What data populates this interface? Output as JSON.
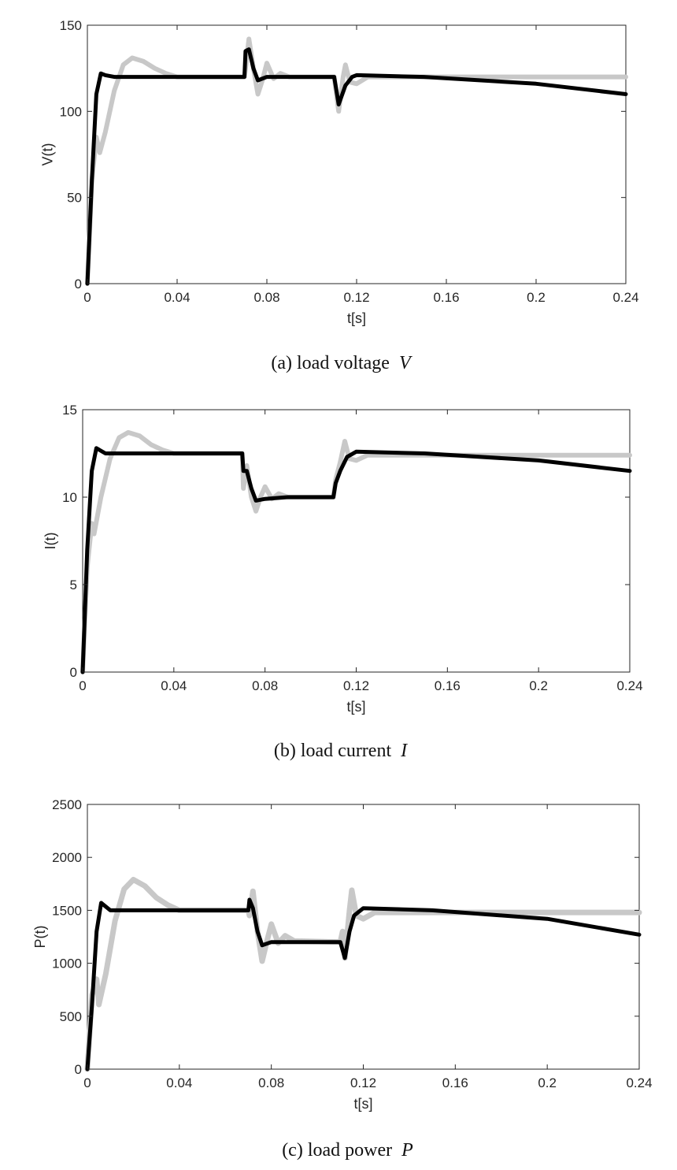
{
  "chart_data": [
    {
      "type": "line",
      "caption": "(a)  load voltage",
      "caption_var": "V",
      "xlabel": "t[s]",
      "ylabel": "V(t)",
      "xlim": [
        0,
        0.24
      ],
      "ylim": [
        0,
        150
      ],
      "xticks": [
        "0",
        "0.04",
        "0.08",
        "0.12",
        "0.16",
        "0.2",
        "0.24"
      ],
      "yticks": [
        "0",
        "50",
        "100",
        "150"
      ],
      "grid": false,
      "series": [
        {
          "color": "#000000",
          "points": [
            [
              0,
              0
            ],
            [
              0.002,
              60
            ],
            [
              0.004,
              110
            ],
            [
              0.006,
              122
            ],
            [
              0.008,
              121
            ],
            [
              0.012,
              120
            ],
            [
              0.07,
              120
            ],
            [
              0.0705,
              135
            ],
            [
              0.072,
              136
            ],
            [
              0.074,
              125
            ],
            [
              0.076,
              118
            ],
            [
              0.08,
              120
            ],
            [
              0.11,
              120
            ],
            [
              0.111,
              112
            ],
            [
              0.112,
              104
            ],
            [
              0.115,
              115
            ],
            [
              0.118,
              120
            ],
            [
              0.12,
              121
            ],
            [
              0.15,
              120
            ],
            [
              0.2,
              116
            ],
            [
              0.24,
              110
            ]
          ]
        },
        {
          "color": "#c8c8c8",
          "points": [
            [
              0,
              0
            ],
            [
              0.002,
              60
            ],
            [
              0.004,
              85
            ],
            [
              0.0055,
              76
            ],
            [
              0.008,
              88
            ],
            [
              0.012,
              112
            ],
            [
              0.016,
              127
            ],
            [
              0.02,
              131
            ],
            [
              0.025,
              129
            ],
            [
              0.03,
              125
            ],
            [
              0.035,
              122
            ],
            [
              0.04,
              120
            ],
            [
              0.07,
              120
            ],
            [
              0.0705,
              125
            ],
            [
              0.072,
              142
            ],
            [
              0.074,
              125
            ],
            [
              0.076,
              110
            ],
            [
              0.078,
              118
            ],
            [
              0.08,
              128
            ],
            [
              0.083,
              119
            ],
            [
              0.086,
              122
            ],
            [
              0.09,
              120
            ],
            [
              0.11,
              120
            ],
            [
              0.111,
              110
            ],
            [
              0.112,
              100
            ],
            [
              0.114,
              120
            ],
            [
              0.115,
              127
            ],
            [
              0.117,
              117
            ],
            [
              0.12,
              116
            ],
            [
              0.125,
              120
            ],
            [
              0.24,
              120
            ]
          ]
        }
      ]
    },
    {
      "type": "line",
      "caption": "(b)  load current",
      "caption_var": "I",
      "xlabel": "t[s]",
      "ylabel": "I(t)",
      "xlim": [
        0,
        0.24
      ],
      "ylim": [
        0,
        15
      ],
      "xticks": [
        "0",
        "0.04",
        "0.08",
        "0.12",
        "0.16",
        "0.2",
        "0.24"
      ],
      "yticks": [
        "0",
        "5",
        "10",
        "15"
      ],
      "grid": false,
      "series": [
        {
          "color": "#000000",
          "points": [
            [
              0,
              0
            ],
            [
              0.002,
              7
            ],
            [
              0.004,
              11.5
            ],
            [
              0.006,
              12.8
            ],
            [
              0.01,
              12.5
            ],
            [
              0.07,
              12.5
            ],
            [
              0.0705,
              11.5
            ],
            [
              0.072,
              11.5
            ],
            [
              0.074,
              10.5
            ],
            [
              0.076,
              9.8
            ],
            [
              0.08,
              9.9
            ],
            [
              0.09,
              10
            ],
            [
              0.11,
              10
            ],
            [
              0.111,
              10.8
            ],
            [
              0.113,
              11.5
            ],
            [
              0.116,
              12.3
            ],
            [
              0.12,
              12.6
            ],
            [
              0.15,
              12.5
            ],
            [
              0.2,
              12.1
            ],
            [
              0.24,
              11.5
            ]
          ]
        },
        {
          "color": "#c8c8c8",
          "points": [
            [
              0,
              0
            ],
            [
              0.002,
              6
            ],
            [
              0.004,
              8.5
            ],
            [
              0.005,
              7.9
            ],
            [
              0.008,
              10
            ],
            [
              0.012,
              12.2
            ],
            [
              0.016,
              13.4
            ],
            [
              0.02,
              13.7
            ],
            [
              0.025,
              13.5
            ],
            [
              0.03,
              13
            ],
            [
              0.035,
              12.7
            ],
            [
              0.04,
              12.5
            ],
            [
              0.07,
              12.5
            ],
            [
              0.0705,
              10.5
            ],
            [
              0.072,
              11.8
            ],
            [
              0.074,
              10
            ],
            [
              0.076,
              9.2
            ],
            [
              0.078,
              10
            ],
            [
              0.08,
              10.6
            ],
            [
              0.083,
              9.9
            ],
            [
              0.086,
              10.2
            ],
            [
              0.09,
              10
            ],
            [
              0.11,
              10
            ],
            [
              0.111,
              11
            ],
            [
              0.113,
              12
            ],
            [
              0.115,
              13.2
            ],
            [
              0.117,
              12.2
            ],
            [
              0.12,
              12.1
            ],
            [
              0.125,
              12.4
            ],
            [
              0.24,
              12.4
            ]
          ]
        }
      ]
    },
    {
      "type": "line",
      "caption": "(c)  load power",
      "caption_var": "P",
      "xlabel": "t[s]",
      "ylabel": "P(t)",
      "xlim": [
        0,
        0.24
      ],
      "ylim": [
        0,
        2500
      ],
      "xticks": [
        "0",
        "0.04",
        "0.08",
        "0.12",
        "0.16",
        "0.2",
        "0.24"
      ],
      "yticks": [
        "0",
        "500",
        "1000",
        "1500",
        "2000",
        "2500"
      ],
      "grid": false,
      "series": [
        {
          "color": "#000000",
          "points": [
            [
              0,
              0
            ],
            [
              0.002,
              600
            ],
            [
              0.004,
              1300
            ],
            [
              0.006,
              1570
            ],
            [
              0.01,
              1500
            ],
            [
              0.07,
              1500
            ],
            [
              0.0705,
              1600
            ],
            [
              0.072,
              1520
            ],
            [
              0.074,
              1300
            ],
            [
              0.076,
              1170
            ],
            [
              0.08,
              1200
            ],
            [
              0.09,
              1200
            ],
            [
              0.11,
              1200
            ],
            [
              0.112,
              1050
            ],
            [
              0.114,
              1300
            ],
            [
              0.116,
              1450
            ],
            [
              0.12,
              1520
            ],
            [
              0.15,
              1500
            ],
            [
              0.2,
              1420
            ],
            [
              0.24,
              1270
            ]
          ]
        },
        {
          "color": "#c8c8c8",
          "points": [
            [
              0,
              0
            ],
            [
              0.002,
              700
            ],
            [
              0.004,
              850
            ],
            [
              0.005,
              610
            ],
            [
              0.008,
              900
            ],
            [
              0.012,
              1400
            ],
            [
              0.016,
              1700
            ],
            [
              0.02,
              1790
            ],
            [
              0.025,
              1730
            ],
            [
              0.03,
              1620
            ],
            [
              0.035,
              1550
            ],
            [
              0.04,
              1500
            ],
            [
              0.07,
              1500
            ],
            [
              0.0705,
              1450
            ],
            [
              0.072,
              1680
            ],
            [
              0.074,
              1300
            ],
            [
              0.076,
              1020
            ],
            [
              0.078,
              1200
            ],
            [
              0.08,
              1370
            ],
            [
              0.083,
              1190
            ],
            [
              0.086,
              1260
            ],
            [
              0.09,
              1210
            ],
            [
              0.11,
              1200
            ],
            [
              0.111,
              1300
            ],
            [
              0.112,
              1050
            ],
            [
              0.114,
              1500
            ],
            [
              0.115,
              1690
            ],
            [
              0.117,
              1450
            ],
            [
              0.12,
              1420
            ],
            [
              0.125,
              1480
            ],
            [
              0.24,
              1480
            ]
          ]
        }
      ]
    }
  ]
}
